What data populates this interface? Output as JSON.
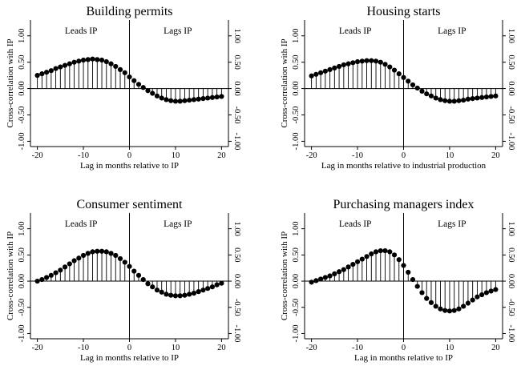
{
  "chart_data": [
    {
      "type": "stem",
      "title": "Building permits",
      "xlabel": "Lag in months relative to IP",
      "ylabel": "Cross-correlation with IP",
      "left_region_label": "Leads IP",
      "right_region_label": "Lags IP",
      "xlim": [
        -21.5,
        21.5
      ],
      "ylim": [
        -1.1,
        1.3
      ],
      "xticks": [
        -20,
        -10,
        0,
        10,
        20
      ],
      "yticks": [
        "-1.00",
        "-0.50",
        "0.00",
        "0.50",
        "1.00"
      ],
      "x": [
        -20,
        -19,
        -18,
        -17,
        -16,
        -15,
        -14,
        -13,
        -12,
        -11,
        -10,
        -9,
        -8,
        -7,
        -6,
        -5,
        -4,
        -3,
        -2,
        -1,
        0,
        1,
        2,
        3,
        4,
        5,
        6,
        7,
        8,
        9,
        10,
        11,
        12,
        13,
        14,
        15,
        16,
        17,
        18,
        19,
        20
      ],
      "y": [
        0.25,
        0.28,
        0.31,
        0.34,
        0.38,
        0.41,
        0.44,
        0.47,
        0.5,
        0.52,
        0.54,
        0.55,
        0.56,
        0.55,
        0.54,
        0.51,
        0.47,
        0.42,
        0.36,
        0.3,
        0.22,
        0.15,
        0.08,
        0.02,
        -0.04,
        -0.09,
        -0.14,
        -0.18,
        -0.21,
        -0.23,
        -0.24,
        -0.24,
        -0.23,
        -0.22,
        -0.21,
        -0.2,
        -0.19,
        -0.18,
        -0.17,
        -0.16,
        -0.15
      ]
    },
    {
      "type": "stem",
      "title": "Housing starts",
      "xlabel": "Lag in months relative to industrial production",
      "ylabel": "Cross-correlation with IP",
      "left_region_label": "Leads IP",
      "right_region_label": "Lags IP",
      "xlim": [
        -21.5,
        21.5
      ],
      "ylim": [
        -1.1,
        1.3
      ],
      "xticks": [
        -20,
        -10,
        0,
        10,
        20
      ],
      "yticks": [
        "-1.00",
        "-0.50",
        "0.00",
        "0.50",
        "1.00"
      ],
      "x": [
        -20,
        -19,
        -18,
        -17,
        -16,
        -15,
        -14,
        -13,
        -12,
        -11,
        -10,
        -9,
        -8,
        -7,
        -6,
        -5,
        -4,
        -3,
        -2,
        -1,
        0,
        1,
        2,
        3,
        4,
        5,
        6,
        7,
        8,
        9,
        10,
        11,
        12,
        13,
        14,
        15,
        16,
        17,
        18,
        19,
        20
      ],
      "y": [
        0.24,
        0.27,
        0.3,
        0.33,
        0.36,
        0.39,
        0.42,
        0.45,
        0.47,
        0.49,
        0.51,
        0.52,
        0.53,
        0.53,
        0.52,
        0.5,
        0.46,
        0.41,
        0.35,
        0.28,
        0.21,
        0.14,
        0.07,
        0.01,
        -0.05,
        -0.1,
        -0.14,
        -0.18,
        -0.21,
        -0.23,
        -0.24,
        -0.24,
        -0.23,
        -0.22,
        -0.2,
        -0.19,
        -0.18,
        -0.17,
        -0.16,
        -0.15,
        -0.14
      ]
    },
    {
      "type": "stem",
      "title": "Consumer sentiment",
      "xlabel": "Lag in months relative to IP",
      "ylabel": "Cross-correlation with IP",
      "left_region_label": "Leads IP",
      "right_region_label": "Lags IP",
      "xlim": [
        -21.5,
        21.5
      ],
      "ylim": [
        -1.1,
        1.3
      ],
      "xticks": [
        -20,
        -10,
        0,
        10,
        20
      ],
      "yticks": [
        "-1.00",
        "-0.50",
        "0.00",
        "0.50",
        "1.00"
      ],
      "x": [
        -20,
        -19,
        -18,
        -17,
        -16,
        -15,
        -14,
        -13,
        -12,
        -11,
        -10,
        -9,
        -8,
        -7,
        -6,
        -5,
        -4,
        -3,
        -2,
        -1,
        0,
        1,
        2,
        3,
        4,
        5,
        6,
        7,
        8,
        9,
        10,
        11,
        12,
        13,
        14,
        15,
        16,
        17,
        18,
        19,
        20
      ],
      "y": [
        0.0,
        0.03,
        0.07,
        0.11,
        0.16,
        0.21,
        0.27,
        0.33,
        0.39,
        0.44,
        0.49,
        0.53,
        0.56,
        0.57,
        0.57,
        0.56,
        0.53,
        0.49,
        0.43,
        0.36,
        0.28,
        0.19,
        0.11,
        0.03,
        -0.05,
        -0.11,
        -0.17,
        -0.21,
        -0.25,
        -0.27,
        -0.28,
        -0.28,
        -0.27,
        -0.25,
        -0.23,
        -0.2,
        -0.17,
        -0.14,
        -0.11,
        -0.07,
        -0.04
      ]
    },
    {
      "type": "stem",
      "title": "Purchasing managers index",
      "xlabel": "Lag in months relative to IP",
      "ylabel": "Cross-correlation with IP",
      "left_region_label": "Leads IP",
      "right_region_label": "Lags IP",
      "xlim": [
        -21.5,
        21.5
      ],
      "ylim": [
        -1.1,
        1.3
      ],
      "xticks": [
        -20,
        -10,
        0,
        10,
        20
      ],
      "yticks": [
        "-1.00",
        "-0.50",
        "0.00",
        "0.50",
        "1.00"
      ],
      "x": [
        -20,
        -19,
        -18,
        -17,
        -16,
        -15,
        -14,
        -13,
        -12,
        -11,
        -10,
        -9,
        -8,
        -7,
        -6,
        -5,
        -4,
        -3,
        -2,
        -1,
        0,
        1,
        2,
        3,
        4,
        5,
        6,
        7,
        8,
        9,
        10,
        11,
        12,
        13,
        14,
        15,
        16,
        17,
        18,
        19,
        20
      ],
      "y": [
        -0.02,
        0.01,
        0.04,
        0.07,
        0.1,
        0.14,
        0.18,
        0.22,
        0.27,
        0.32,
        0.37,
        0.42,
        0.47,
        0.52,
        0.56,
        0.58,
        0.58,
        0.56,
        0.5,
        0.41,
        0.3,
        0.17,
        0.03,
        -0.1,
        -0.22,
        -0.33,
        -0.41,
        -0.48,
        -0.53,
        -0.56,
        -0.57,
        -0.56,
        -0.53,
        -0.48,
        -0.42,
        -0.36,
        -0.3,
        -0.26,
        -0.22,
        -0.19,
        -0.16
      ]
    }
  ]
}
